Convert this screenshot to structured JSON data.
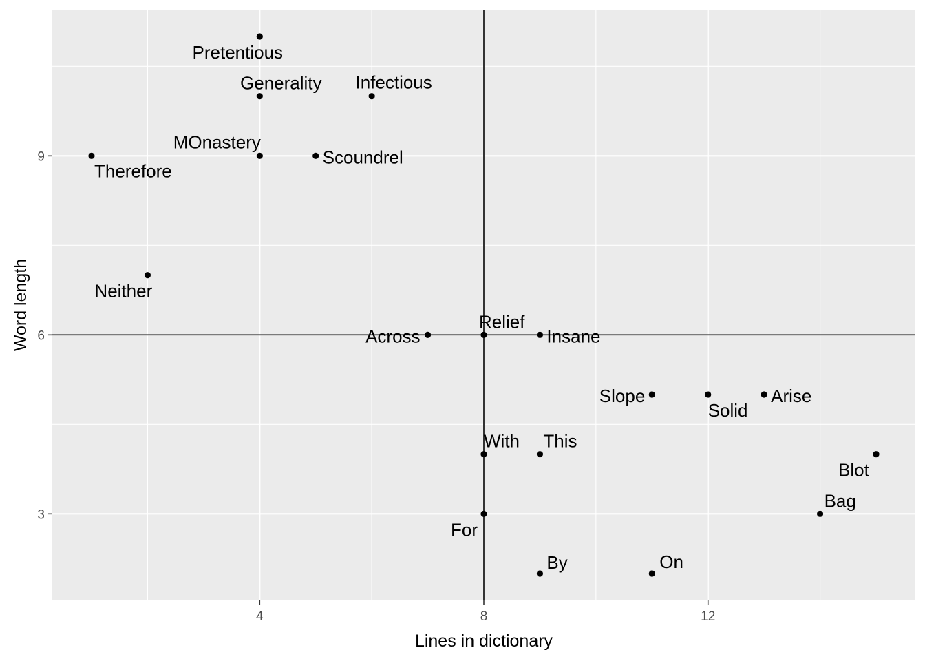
{
  "chart_data": {
    "type": "scatter",
    "title": "",
    "xlabel": "Lines in dictionary",
    "ylabel": "Word length",
    "xlim": [
      0.3,
      15.7
    ],
    "ylim": [
      1.55,
      11.45
    ],
    "x_ticks": [
      4,
      8,
      12
    ],
    "y_ticks": [
      3,
      6,
      9
    ],
    "x_tick_labels": [
      "4",
      "8",
      "12"
    ],
    "y_tick_labels": [
      "3",
      "6",
      "9"
    ],
    "reference_lines": {
      "x": 8,
      "y": 6
    },
    "grid": true,
    "legend": "none",
    "colors": {
      "panel": "#ebebeb",
      "grid": "#ffffff",
      "points": "#000000",
      "reference": "#000000"
    },
    "points": [
      {
        "label": "Pretentious",
        "x": 4,
        "y": 11
      },
      {
        "label": "Generality",
        "x": 4,
        "y": 10
      },
      {
        "label": "Infectious",
        "x": 6,
        "y": 10
      },
      {
        "label": "MOnastery",
        "x": 4,
        "y": 9
      },
      {
        "label": "Scoundrel",
        "x": 5,
        "y": 9
      },
      {
        "label": "Therefore",
        "x": 1,
        "y": 9
      },
      {
        "label": "Neither",
        "x": 2,
        "y": 7
      },
      {
        "label": "Relief",
        "x": 8,
        "y": 6
      },
      {
        "label": "Across",
        "x": 7,
        "y": 6
      },
      {
        "label": "Insane",
        "x": 9,
        "y": 6
      },
      {
        "label": "Slope",
        "x": 11,
        "y": 5
      },
      {
        "label": "Solid",
        "x": 12,
        "y": 5
      },
      {
        "label": "Arise",
        "x": 13,
        "y": 5
      },
      {
        "label": "With",
        "x": 8,
        "y": 4
      },
      {
        "label": "This",
        "x": 9,
        "y": 4
      },
      {
        "label": "Blot",
        "x": 15,
        "y": 4
      },
      {
        "label": "Bag",
        "x": 14,
        "y": 3
      },
      {
        "label": "For",
        "x": 8,
        "y": 3
      },
      {
        "label": "By",
        "x": 9,
        "y": 2
      },
      {
        "label": "On",
        "x": 11,
        "y": 2
      }
    ]
  }
}
